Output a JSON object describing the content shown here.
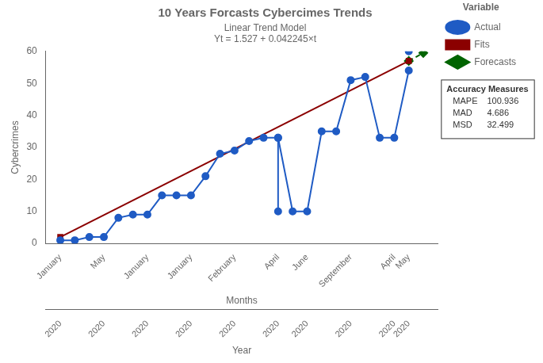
{
  "chart_data": {
    "type": "line",
    "title": "10 Years Forcasts Cybercimes Trends",
    "subtitle": "Linear Trend Model",
    "equation": "Yt = 1.527 + 0.042245×t",
    "xlabel": "Months",
    "x2label": "Year",
    "ylabel": "Cybercrimes",
    "series": [
      {
        "name": "Actual",
        "color": "#1f5bc4",
        "marker": "circle",
        "line_style": "solid",
        "x": [
          1,
          2,
          3,
          4,
          5,
          6,
          7,
          8,
          9,
          10,
          11,
          12,
          13,
          14,
          15,
          16,
          17,
          18,
          19,
          20,
          21,
          22,
          23,
          24,
          25
        ],
        "values": [
          1,
          1,
          2,
          2,
          8,
          9,
          9,
          15,
          15,
          15,
          21,
          28,
          29,
          32,
          33,
          33,
          10,
          10,
          35,
          35,
          51,
          52,
          33,
          33,
          54
        ]
      },
      {
        "color": "#1f5bc4",
        "marker": "circle",
        "type": "scatter",
        "x": [
          25
        ],
        "values": [
          60
        ]
      },
      {
        "color": "#1f5bc4",
        "marker": "circle",
        "line_style": "solid",
        "x": [
          16,
          16
        ],
        "values": [
          10,
          33
        ]
      },
      {
        "name": "Fits",
        "color": "#8b0000",
        "marker": "square",
        "line_style": "solid",
        "x": [
          1,
          25
        ],
        "values": [
          2.0,
          57.0
        ]
      },
      {
        "name": "Forecasts",
        "color": "#006400",
        "marker": "diamond",
        "line_style": "dashed",
        "x": [
          25,
          26
        ],
        "values": [
          57.0,
          59.5
        ]
      }
    ],
    "xlim": [
      0,
      27
    ],
    "xticks": [
      {
        "value": 1,
        "label": "January"
      },
      {
        "value": 4,
        "label": "May"
      },
      {
        "value": 7,
        "label": "January"
      },
      {
        "value": 10,
        "label": "January"
      },
      {
        "value": 13,
        "label": "February"
      },
      {
        "value": 16,
        "label": "April"
      },
      {
        "value": 18,
        "label": "June"
      },
      {
        "value": 21,
        "label": "September"
      },
      {
        "value": 24,
        "label": "April"
      },
      {
        "value": 25,
        "label": "May"
      }
    ],
    "x2ticks": [
      {
        "value": 1,
        "label": "2020"
      },
      {
        "value": 4,
        "label": "2020"
      },
      {
        "value": 7,
        "label": "2020"
      },
      {
        "value": 10,
        "label": "2020"
      },
      {
        "value": 13,
        "label": "2020"
      },
      {
        "value": 16,
        "label": "2020"
      },
      {
        "value": 18,
        "label": "2020"
      },
      {
        "value": 21,
        "label": "2020"
      },
      {
        "value": 24,
        "label": "2020"
      },
      {
        "value": 25,
        "label": "2020"
      }
    ],
    "ylim": [
      0,
      60
    ],
    "yticks": [
      0,
      10,
      20,
      30,
      40,
      50,
      60
    ],
    "grid": false,
    "legend": "right",
    "legend_title": "Variable",
    "accuracy_title": "Accuracy Measures",
    "accuracy": [
      {
        "name": "MAPE",
        "value": 100.936
      },
      {
        "name": "MAD",
        "value": 4.686
      },
      {
        "name": "MSD",
        "value": 32.499
      }
    ]
  }
}
